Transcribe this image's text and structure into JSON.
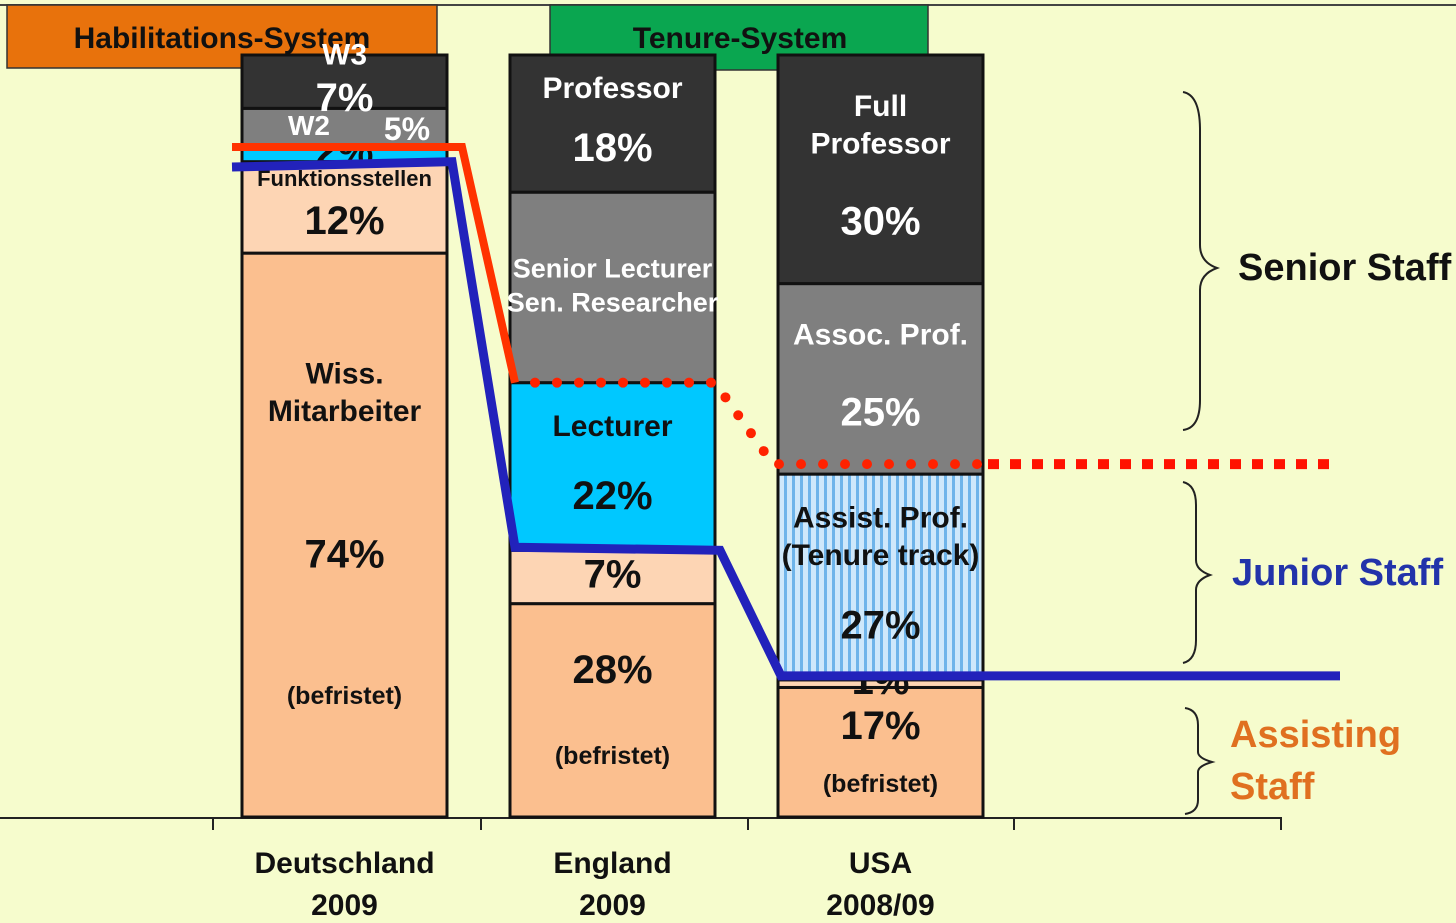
{
  "chart_data": {
    "type": "stacked_bar",
    "ylim": [
      0,
      100
    ],
    "headers": [
      "Habilitations-System",
      "Tenure-System"
    ],
    "bars": [
      {
        "category": [
          "Deutschland",
          "2009"
        ],
        "segments": [
          {
            "name": [
              "Wiss.",
              "Mitarbeiter"
            ],
            "value": 74,
            "value_label": "74%",
            "note": "(befristet)",
            "color": "#fbbf8f"
          },
          {
            "name": [
              "Funktionsstellen"
            ],
            "value": 12,
            "value_label": "12%",
            "color": "#fdd5b4"
          },
          {
            "value": 2,
            "value_label": "2%",
            "color": "#00c8ff"
          },
          {
            "name": [
              "W2"
            ],
            "value": 5,
            "value_label": "5%",
            "color": "#7f7f7f"
          },
          {
            "name": [
              "W3"
            ],
            "value": 7,
            "value_label": "7%",
            "color": "#333333"
          }
        ]
      },
      {
        "category": [
          "England",
          "2009"
        ],
        "segments": [
          {
            "value": 28,
            "value_label": "28%",
            "note": "(befristet)",
            "color": "#fbbf8f"
          },
          {
            "value": 7,
            "value_label": "7%",
            "color": "#fdd5b4"
          },
          {
            "name": [
              "Lecturer"
            ],
            "value": 22,
            "value_label": "22%",
            "color": "#00c8ff"
          },
          {
            "name": [
              "Senior Lecturer",
              "Sen. Researcher"
            ],
            "value": 25,
            "color": "#7f7f7f"
          },
          {
            "name": [
              "Professor"
            ],
            "value": 18,
            "value_label": "18%",
            "color": "#333333"
          }
        ]
      },
      {
        "category": [
          "USA",
          "2008/09"
        ],
        "segments": [
          {
            "value": 17,
            "value_label": "17%",
            "note": "(befristet)",
            "color": "#fbbf8f"
          },
          {
            "value": 1,
            "value_label": "1%",
            "color": "#fdd5b4"
          },
          {
            "name": [
              "Assist. Prof.",
              "(Tenure track)"
            ],
            "value": 27,
            "value_label": "27%",
            "color": "#a9d6f7",
            "pattern": "vertical-stripes"
          },
          {
            "name": [
              "Assoc. Prof."
            ],
            "value": 25,
            "value_label": "25%",
            "color": "#7f7f7f"
          },
          {
            "name": [
              "Full",
              "Professor"
            ],
            "value": 30,
            "value_label": "30%",
            "color": "#333333"
          }
        ]
      }
    ],
    "groups": [
      {
        "label": [
          "Senior Staff"
        ],
        "color": "#111111"
      },
      {
        "label": [
          "Junior Staff"
        ],
        "color": "#2233aa"
      },
      {
        "label": [
          "Assisting",
          "Staff"
        ],
        "color": "#e07020"
      }
    ]
  }
}
